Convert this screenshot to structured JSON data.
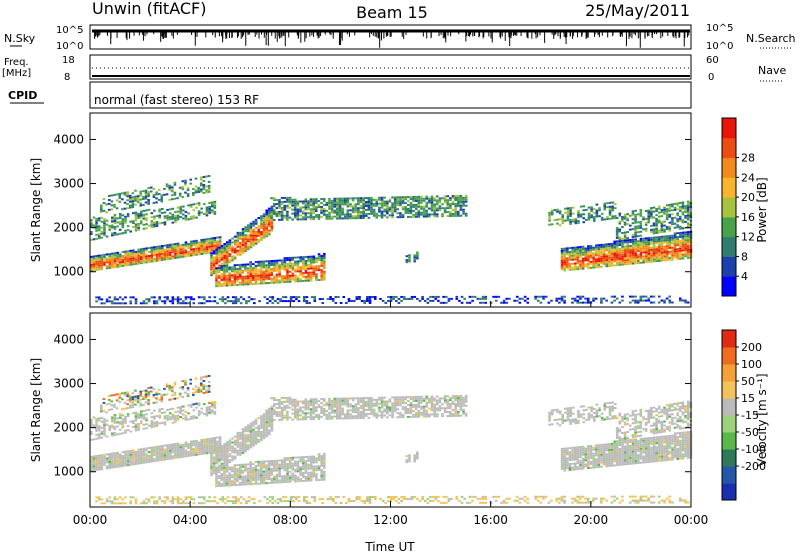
{
  "header": {
    "station": "Unwin (fitACF)",
    "beam": "Beam 15",
    "date": "25/May/2011"
  },
  "strips": {
    "nsky_label": "N.Sky",
    "nsky_ticks": [
      "10^5",
      "10^0"
    ],
    "nsearch_label": "N.Search",
    "freq_label_top": "Freq.",
    "freq_label_bottom": "[MHz]",
    "freq_ticks": [
      "18",
      "8"
    ],
    "nave_label": "Nave",
    "nave_ticks": [
      "60",
      "0"
    ],
    "cpid_label": "CPID",
    "cpid_text": "normal (fast stereo) 153 RF"
  },
  "chart_data": [
    {
      "type": "heatmap",
      "name": "power",
      "ylabel": "Slant Range [km]",
      "yticks": [
        "1000",
        "2000",
        "3000",
        "4000"
      ],
      "ylim": [
        200,
        4600
      ],
      "xlim_hours": [
        0,
        24
      ],
      "colorbar_label": "Power [dB]",
      "colorbar_ticks": [
        "4",
        "8",
        "12",
        "16",
        "20",
        "24",
        "28"
      ],
      "colors": [
        "#0000ff",
        "#1c3fae",
        "#2e7d6e",
        "#49a24a",
        "#a7c23d",
        "#f6b52a",
        "#f08a1c",
        "#ee4d12",
        "#e8150b"
      ]
    },
    {
      "type": "heatmap",
      "name": "velocity",
      "ylabel": "Slant Range [km]",
      "yticks": [
        "1000",
        "2000",
        "3000",
        "4000"
      ],
      "ylim": [
        200,
        4600
      ],
      "xlim_hours": [
        0,
        24
      ],
      "colorbar_label": "Velocity [m s⁻¹]",
      "colorbar_ticks": [
        "200",
        "100",
        "50",
        "15",
        "-15",
        "-50",
        "-100",
        "-200"
      ],
      "colors": [
        "#1a2fb0",
        "#2557a8",
        "#2e7a57",
        "#5ab84a",
        "#9cd27a",
        "#bbbbbb",
        "#f3c35a",
        "#f3a23a",
        "#ee6b20",
        "#e12a14"
      ]
    }
  ],
  "x_axis": {
    "ticks": [
      "00:00",
      "04:00",
      "08:00",
      "12:00",
      "16:00",
      "20:00",
      "00:00"
    ],
    "label": "Time UT"
  }
}
